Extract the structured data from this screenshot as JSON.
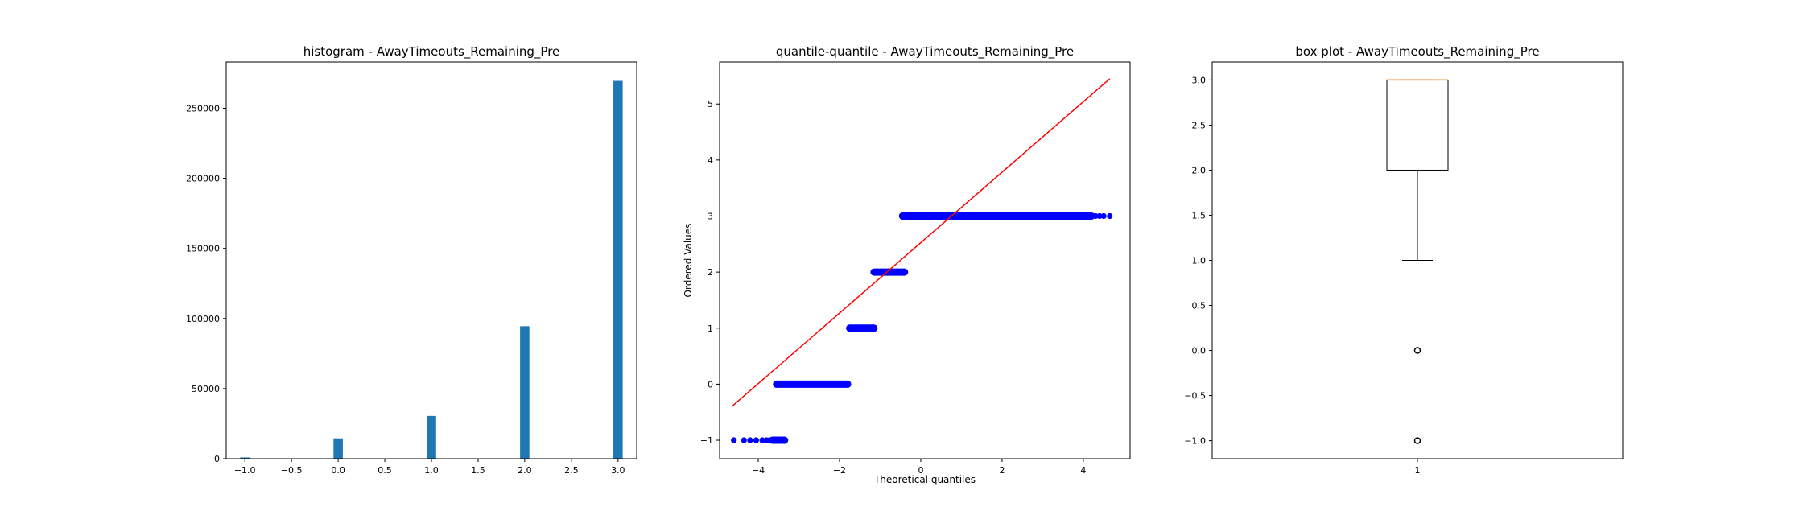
{
  "chart_data": [
    {
      "type": "bar",
      "title": "histogram - AwayTimeouts_Remaining_Pre",
      "xlabel": "",
      "ylabel": "",
      "xlim": [
        -1.2,
        3.2
      ],
      "ylim": [
        0,
        283000
      ],
      "xticks": [
        "−1.0",
        "−0.5",
        "0.0",
        "0.5",
        "1.0",
        "1.5",
        "2.0",
        "2.5",
        "3.0"
      ],
      "yticks": [
        "0",
        "50000",
        "100000",
        "150000",
        "200000",
        "250000"
      ],
      "bins": [
        {
          "x": -1,
          "value": 900
        },
        {
          "x": 0,
          "value": 14500
        },
        {
          "x": 1,
          "value": 30500
        },
        {
          "x": 2,
          "value": 94500
        },
        {
          "x": 3,
          "value": 269500
        }
      ],
      "color": "#1f77b4"
    },
    {
      "type": "scatter",
      "title": "quantile-quantile - AwayTimeouts_Remaining_Pre",
      "xlabel": "Theoretical quantiles",
      "ylabel": "Ordered Values",
      "xlim": [
        -4.95,
        5.15
      ],
      "ylim": [
        -1.33,
        5.75
      ],
      "xticks": [
        "−4",
        "−2",
        "0",
        "2",
        "4"
      ],
      "yticks": [
        "−1",
        "0",
        "1",
        "2",
        "3",
        "4",
        "5"
      ],
      "point_color": "#0000ff",
      "line_color": "#ff0000",
      "reference_line": {
        "x": [
          -4.65,
          4.65
        ],
        "y": [
          -0.4,
          5.45
        ]
      },
      "quantile_segments": [
        {
          "y": -1,
          "x_from": -3.65,
          "x_to": -3.35,
          "outliers_x": [
            -4.6,
            -4.35,
            -4.2,
            -4.05,
            -3.9,
            -3.8,
            -3.72
          ]
        },
        {
          "y": 0,
          "x_from": -3.55,
          "x_to": -1.8,
          "outliers_x": []
        },
        {
          "y": 1,
          "x_from": -1.75,
          "x_to": -1.15,
          "outliers_x": []
        },
        {
          "y": 2,
          "x_from": -1.15,
          "x_to": -0.4,
          "outliers_x": []
        },
        {
          "y": 3,
          "x_from": -0.45,
          "x_to": 4.2,
          "outliers_x": [
            4.3,
            4.4,
            4.5,
            4.65
          ]
        }
      ]
    },
    {
      "type": "box",
      "title": "box plot - AwayTimeouts_Remaining_Pre",
      "xlabel": "",
      "ylabel": "",
      "ylim": [
        -1.2,
        3.2
      ],
      "xticks": [
        "1"
      ],
      "yticks": [
        "−1.0",
        "−0.5",
        "0.0",
        "0.5",
        "1.0",
        "1.5",
        "2.0",
        "2.5",
        "3.0"
      ],
      "box": {
        "q1": 2,
        "median": 3,
        "q3": 3,
        "whisker_low": 1,
        "whisker_high": 3,
        "fliers": [
          0,
          -1
        ]
      },
      "median_color": "#ff7f0e"
    }
  ]
}
